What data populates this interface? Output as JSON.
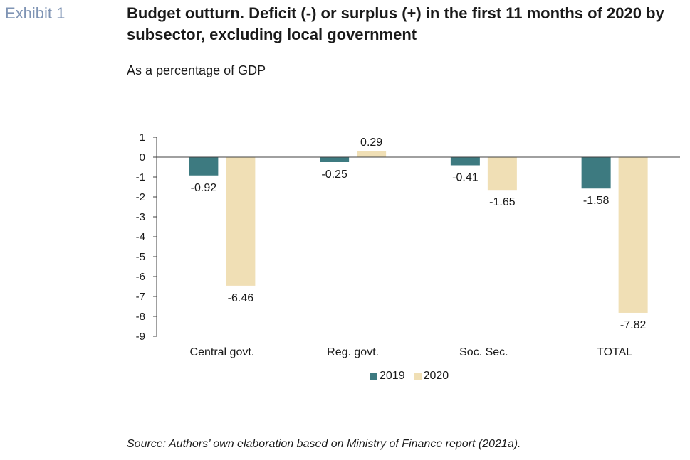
{
  "header": {
    "exhibit_label": "Exhibit 1",
    "title": "Budget outturn. Deficit (-) or surplus (+) in the first 11 months of 2020 by subsector, excluding local government",
    "subtitle": "As a percentage of GDP"
  },
  "footer": {
    "source": "Source: Authors’ own elaboration based on Ministry of Finance report (2021a)."
  },
  "chart_data": {
    "type": "bar",
    "title": "Budget outturn. Deficit (-) or surplus (+) in the first 11 months of 2020 by subsector, excluding local government",
    "subtitle": "As a percentage of GDP",
    "categories": [
      "Central govt.",
      "Reg. govt.",
      "Soc. Sec.",
      "TOTAL"
    ],
    "series": [
      {
        "name": "2019",
        "values": [
          -0.92,
          -0.25,
          -0.41,
          -1.58
        ],
        "labels": [
          "-0.92",
          "-0.25",
          "-0.41",
          "-1.58"
        ],
        "color": "#3d7a80"
      },
      {
        "name": "2020",
        "values": [
          -6.46,
          0.29,
          -1.65,
          -7.82
        ],
        "labels": [
          "-6.46",
          "0.29",
          "-1.65",
          "-7.82"
        ],
        "color": "#f0dfb5"
      }
    ],
    "ylim": [
      -9,
      1
    ],
    "yticks": [
      1,
      0,
      -1,
      -2,
      -3,
      -4,
      -5,
      -6,
      -7,
      -8,
      -9
    ],
    "grid": false,
    "legend_position": "bottom"
  }
}
